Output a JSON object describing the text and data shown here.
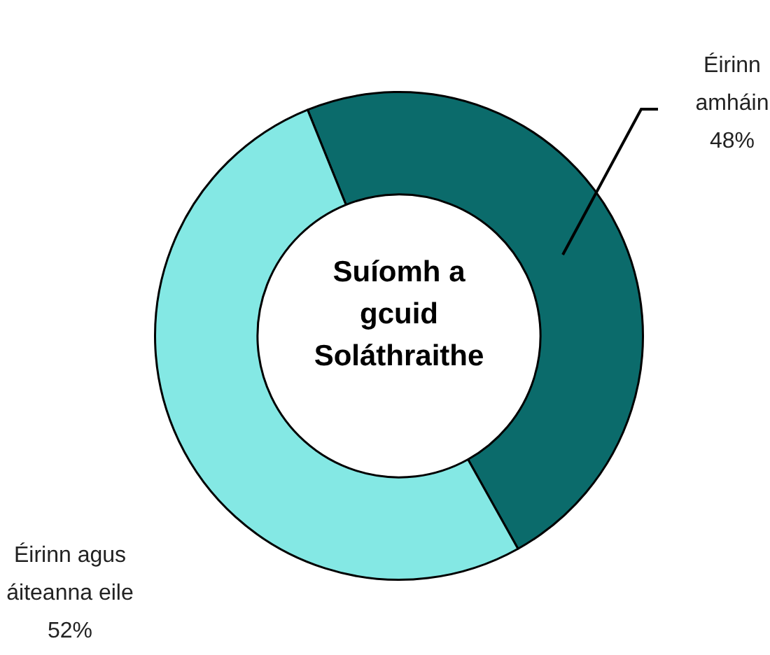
{
  "chart_data": {
    "type": "donut",
    "title": "Suíomh a gcuid Soláthraithe",
    "categories": [
      "Éirinn amháin",
      "Éirinn agus áiteanna eile"
    ],
    "values": [
      48,
      52
    ],
    "colors": [
      "#0b6b6b",
      "#84e8e4"
    ],
    "value_labels": [
      "48%",
      "52%"
    ],
    "legend": false
  }
}
